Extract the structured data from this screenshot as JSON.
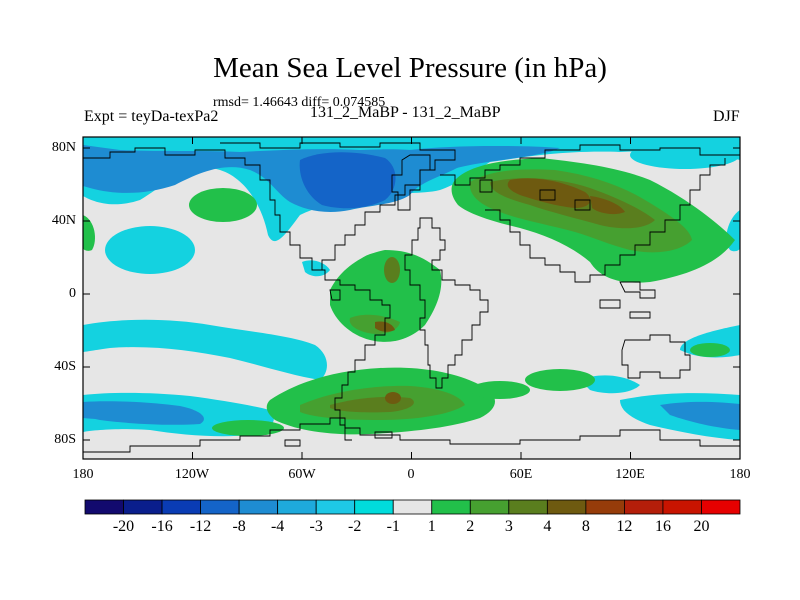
{
  "title": "Mean Sea Level Pressure (in hPa)",
  "stats": "rmsd= 1.46643 diff= 0.074585",
  "left_label": "Expt = teyDa-texPa2",
  "center_label": "131_2_MaBP - 131_2_MaBP",
  "right_label": "DJF",
  "lat_ticks": [
    "80N",
    "40N",
    "0",
    "40S",
    "80S"
  ],
  "lon_ticks": [
    "180",
    "120W",
    "60W",
    "0",
    "60E",
    "120E",
    "180"
  ],
  "colorbar": {
    "labels": [
      "-20",
      "-16",
      "-12",
      "-8",
      "-4",
      "-3",
      "-2",
      "-1",
      "1",
      "2",
      "3",
      "4",
      "8",
      "12",
      "16",
      "20"
    ],
    "colors": [
      "#120a6e",
      "#0a1e8c",
      "#0a3cb4",
      "#1464c8",
      "#1e8cd2",
      "#1eaadc",
      "#1ec8e6",
      "#00dcdc",
      "#e6e6e6",
      "#22c04a",
      "#46a030",
      "#5a7e1e",
      "#6e5a10",
      "#963c0a",
      "#b41e0a",
      "#c81400",
      "#e60000"
    ]
  },
  "map_colors": {
    "background": "#e6e6e6",
    "cyan": "#14d2e0",
    "blue": "#1e8cd2",
    "darkblue": "#1464c8",
    "green": "#22c04a",
    "olive": "#46a030",
    "darkolive": "#5a7e1e",
    "brown": "#6e5a10"
  }
}
